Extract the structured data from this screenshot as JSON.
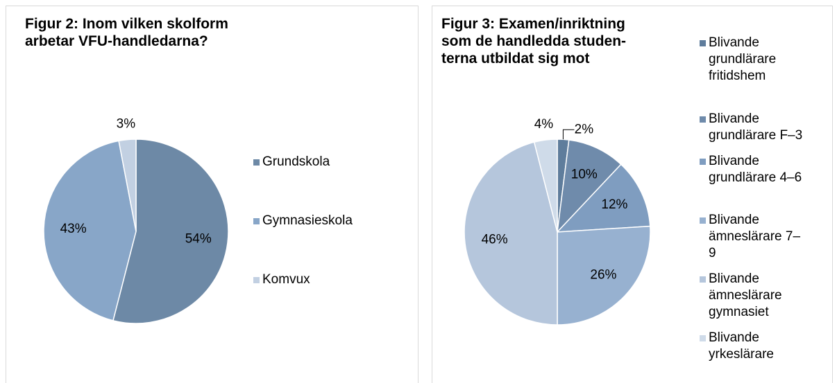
{
  "chart_data": [
    {
      "type": "pie",
      "title": [
        "Figur 2: Inom vilken skolform",
        "arbetar VFU-handledarna?"
      ],
      "categories": [
        "Grundskola",
        "Gymnasieskola",
        "Komvux"
      ],
      "values": [
        54,
        43,
        3
      ],
      "value_labels": [
        "54%",
        "43%",
        "3%"
      ],
      "colors": [
        "#6d89a6",
        "#88a6c8",
        "#c2d0e2"
      ]
    },
    {
      "type": "pie",
      "title": [
        "Figur 3: Examen/inriktning",
        "som de handledda studen-",
        "terna utbildat sig mot"
      ],
      "categories": [
        "Blivande grundlärare fritidshem",
        "Blivande grundlärare F–3",
        "Blivande grundlärare 4–6",
        "Blivande ämneslärare 7–9",
        "Blivande ämneslärare gymnasiet",
        "Blivande yrkeslärare"
      ],
      "values": [
        2,
        10,
        12,
        26,
        46,
        4
      ],
      "value_labels": [
        "2%",
        "10%",
        "12%",
        "26%",
        "46%",
        "4%"
      ],
      "colors": [
        "#5f7d9c",
        "#6f8bab",
        "#7f9dc0",
        "#97b1d0",
        "#b5c6dc",
        "#cfdbe9"
      ]
    }
  ]
}
